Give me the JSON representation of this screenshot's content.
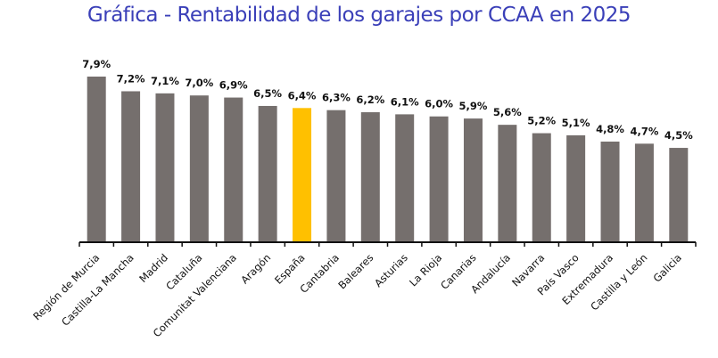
{
  "chart_data": {
    "type": "bar",
    "title": "Gráfica - Rentabilidad de los garajes por CCAA en 2025",
    "categories": [
      "Región de Murcia",
      "Castilla-La Mancha",
      "Madrid",
      "Cataluña",
      "Comunitat Valenciana",
      "Aragón",
      "España",
      "Cantabria",
      "Baleares",
      "Asturias",
      "La Rioja",
      "Canarias",
      "Andalucía",
      "Navarra",
      "País Vasco",
      "Extremadura",
      "Castilla y León",
      "Galicia"
    ],
    "values": [
      7.9,
      7.2,
      7.1,
      7.0,
      6.9,
      6.5,
      6.4,
      6.3,
      6.2,
      6.1,
      6.0,
      5.9,
      5.6,
      5.2,
      5.1,
      4.8,
      4.7,
      4.5
    ],
    "data_labels": [
      "7,9%",
      "7,2%",
      "7,1%",
      "7,0%",
      "6,9%",
      "6,5%",
      "6,4%",
      "6,3%",
      "6,2%",
      "6,1%",
      "6,0%",
      "5,9%",
      "5,6%",
      "5,2%",
      "5,1%",
      "4,8%",
      "4,7%",
      "4,5%"
    ],
    "unit": "%",
    "ylim": [
      0,
      7.9
    ],
    "grid": false,
    "highlight_category": "España",
    "colors": {
      "bar": "#756f6d",
      "highlight": "#ffc000",
      "title": "#3a3fb8"
    }
  }
}
